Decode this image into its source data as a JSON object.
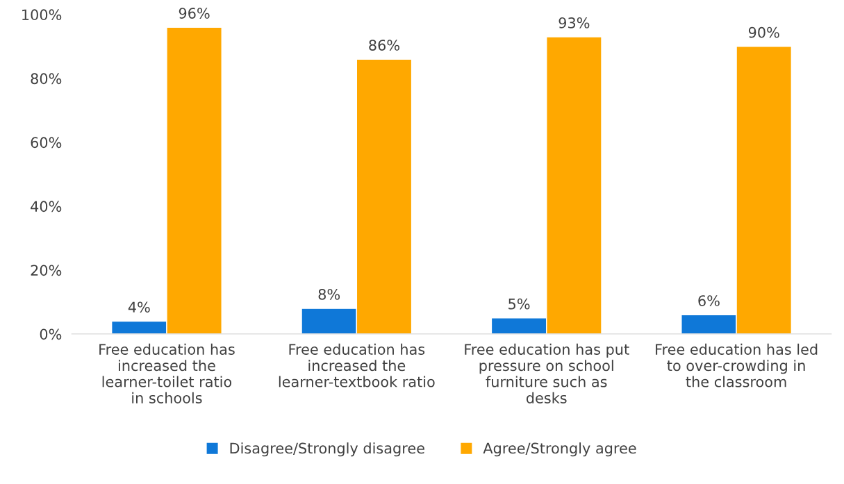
{
  "chart_data": {
    "type": "bar",
    "categories": [
      "Free education has increased the learner-toilet ratio in schools",
      "Free education has increased the learner-textbook ratio",
      "Free education has put pressure on school furniture such as desks",
      "Free education has led to over-crowding in the classroom"
    ],
    "series": [
      {
        "name": "Disagree/Strongly disagree",
        "color": "#0f78d8",
        "values": [
          4,
          8,
          5,
          6
        ],
        "value_labels": [
          "4%",
          "8%",
          "5%",
          "6%"
        ]
      },
      {
        "name": "Agree/Strongly agree",
        "color": "#ffa800",
        "values": [
          96,
          86,
          93,
          90
        ],
        "value_labels": [
          "96%",
          "86%",
          "93%",
          "90%"
        ]
      }
    ],
    "ylim": [
      0,
      100
    ],
    "yticks": [
      {
        "value": 0,
        "label": "0%"
      },
      {
        "value": 20,
        "label": "20%"
      },
      {
        "value": 40,
        "label": "40%"
      },
      {
        "value": 60,
        "label": "60%"
      },
      {
        "value": 80,
        "label": "80%"
      },
      {
        "value": 100,
        "label": "100%"
      }
    ],
    "legend": "bottom",
    "grid": false
  }
}
